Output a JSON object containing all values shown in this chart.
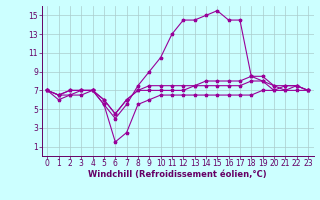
{
  "xlabel": "Windchill (Refroidissement éolien,°C)",
  "x": [
    0,
    1,
    2,
    3,
    4,
    5,
    6,
    7,
    8,
    9,
    10,
    11,
    12,
    13,
    14,
    15,
    16,
    17,
    18,
    19,
    20,
    21,
    22,
    23
  ],
  "line1": [
    7.0,
    6.0,
    6.5,
    7.0,
    7.0,
    5.5,
    4.0,
    5.5,
    7.5,
    9.0,
    10.5,
    13.0,
    14.5,
    14.5,
    15.0,
    15.5,
    14.5,
    14.5,
    8.5,
    8.0,
    7.0,
    7.5,
    7.5,
    7.0
  ],
  "line2": [
    7.0,
    6.5,
    6.5,
    6.5,
    7.0,
    5.5,
    1.5,
    2.5,
    5.5,
    6.0,
    6.5,
    6.5,
    6.5,
    6.5,
    6.5,
    6.5,
    6.5,
    6.5,
    6.5,
    7.0,
    7.0,
    7.0,
    7.0,
    7.0
  ],
  "line3": [
    7.0,
    6.5,
    7.0,
    7.0,
    7.0,
    6.0,
    4.5,
    6.0,
    7.0,
    7.5,
    7.5,
    7.5,
    7.5,
    7.5,
    8.0,
    8.0,
    8.0,
    8.0,
    8.5,
    8.5,
    7.5,
    7.5,
    7.5,
    7.0
  ],
  "line4": [
    7.0,
    6.5,
    7.0,
    7.0,
    7.0,
    6.0,
    4.5,
    6.0,
    7.0,
    7.0,
    7.0,
    7.0,
    7.0,
    7.5,
    7.5,
    7.5,
    7.5,
    7.5,
    8.0,
    8.0,
    7.5,
    7.0,
    7.5,
    7.0
  ],
  "line_color": "#990099",
  "bg_color": "#ccffff",
  "grid_color": "#aacccc",
  "axis_color": "#660066",
  "text_color": "#660066",
  "ylim": [
    0,
    16
  ],
  "xlim": [
    -0.5,
    23.5
  ],
  "yticks": [
    1,
    3,
    5,
    7,
    9,
    11,
    13,
    15
  ],
  "xticks": [
    0,
    1,
    2,
    3,
    4,
    5,
    6,
    7,
    8,
    9,
    10,
    11,
    12,
    13,
    14,
    15,
    16,
    17,
    18,
    19,
    20,
    21,
    22,
    23
  ],
  "tick_fontsize": 5.5,
  "xlabel_fontsize": 6,
  "figsize": [
    3.2,
    2.0
  ],
  "dpi": 100
}
